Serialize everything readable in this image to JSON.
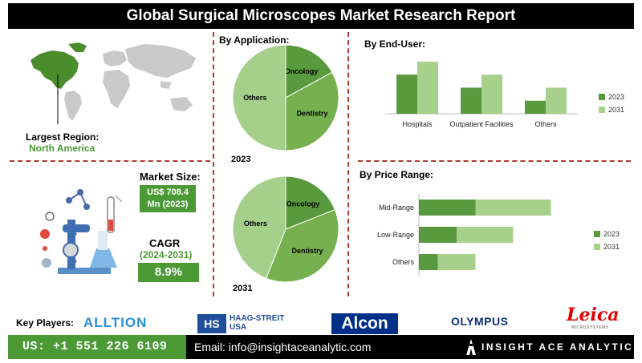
{
  "title": "Global Surgical Microscopes Market Research Report",
  "largest_region": {
    "label": "Largest Region:",
    "value": "North America"
  },
  "market_size": {
    "label": "Market Size:",
    "value_line1": "US$ 708.4",
    "value_line2": "Mn (2023)"
  },
  "cagr": {
    "label": "CAGR",
    "period": "(2024-2031)",
    "value": "8.9%"
  },
  "sections": {
    "by_application": "By Application:",
    "by_end_user": "By  End-User:",
    "by_price_range": "By Price Range:"
  },
  "key_players": {
    "label": "Key Players:",
    "logos": [
      "ALLTION",
      "HAAG-STREIT",
      "USA",
      "Alcon",
      "OLYMPUS",
      "Leica",
      "MICROSYSTEMS"
    ]
  },
  "footer": {
    "phone": "US: +1 551 226 6109",
    "email": "Email: info@insightaceanalytic.com",
    "brand": "INSIGHT ACE ANALYTIC"
  },
  "colors": {
    "dark_green": "#5a9a3e",
    "light_green": "#a8d08d",
    "mid_green": "#7ab35a",
    "accent_red": "#b03a2e"
  },
  "chart_data": [
    {
      "type": "pie",
      "id": "application-2023",
      "year_label": "2023",
      "slices": [
        {
          "label": "Oncology",
          "value": 17,
          "color": "#5a9a3e"
        },
        {
          "label": "Dentistry",
          "value": 33,
          "color": "#76b04f"
        },
        {
          "label": "Others",
          "value": 50,
          "color": "#a5cf8a"
        }
      ]
    },
    {
      "type": "pie",
      "id": "application-2031",
      "year_label": "2031",
      "slices": [
        {
          "label": "Oncology",
          "value": 19,
          "color": "#5a9a3e"
        },
        {
          "label": "Dentistry",
          "value": 37,
          "color": "#76b04f"
        },
        {
          "label": "Others",
          "value": 44,
          "color": "#a5cf8a"
        }
      ]
    },
    {
      "type": "bar",
      "id": "end-user",
      "categories": [
        "Hospitals",
        "Outpatient Facilities",
        "Others"
      ],
      "series": [
        {
          "name": "2023",
          "values": [
            45,
            30,
            15
          ],
          "color": "#5a9a3e"
        },
        {
          "name": "2031",
          "values": [
            60,
            45,
            30
          ],
          "color": "#a8d08d"
        }
      ],
      "ylim": [
        0,
        70
      ],
      "legend": "right"
    },
    {
      "type": "bar",
      "orientation": "horizontal",
      "id": "price-range",
      "categories": [
        "Mid-Range",
        "Low-Range",
        "Others"
      ],
      "series": [
        {
          "name": "2023",
          "values": [
            30,
            20,
            10
          ],
          "color": "#5a9a3e"
        },
        {
          "name": "2031",
          "values": [
            40,
            30,
            20
          ],
          "color": "#a8d08d"
        }
      ],
      "xlim": [
        0,
        80
      ],
      "legend": "right"
    }
  ]
}
